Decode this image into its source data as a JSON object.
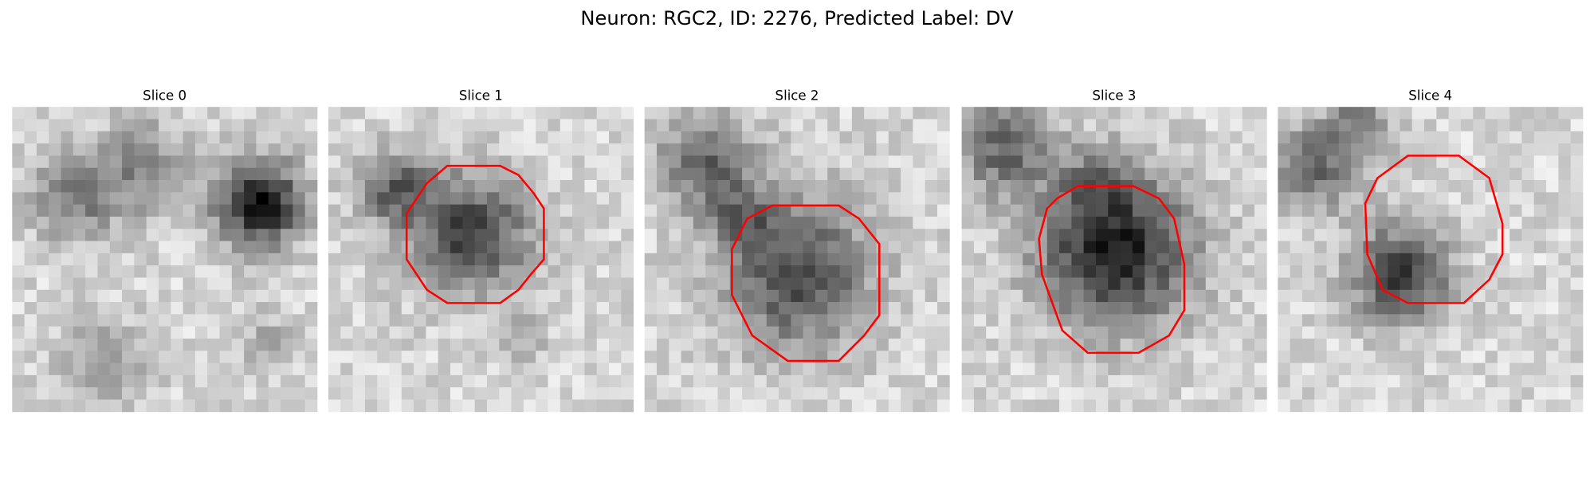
{
  "title": "Neuron: RGC2, ID: 2276, Predicted Label: DV",
  "panels": [
    {
      "title": "Slice 0"
    },
    {
      "title": "Slice 1"
    },
    {
      "title": "Slice 2"
    },
    {
      "title": "Slice 3"
    },
    {
      "title": "Slice 4"
    }
  ]
}
